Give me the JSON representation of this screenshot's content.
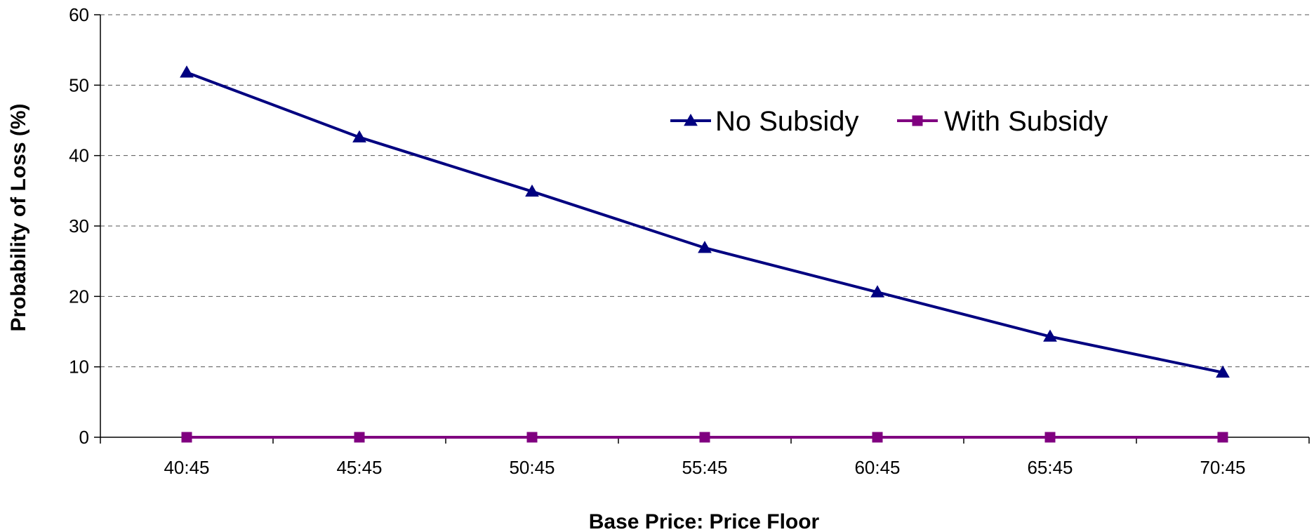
{
  "chart_data": {
    "type": "line",
    "title": "",
    "xlabel": "Base Price: Price Floor",
    "ylabel": "Probability of Loss (%)",
    "categories": [
      "40:45",
      "45:45",
      "50:45",
      "55:45",
      "60:45",
      "65:45",
      "70:45"
    ],
    "ylim": [
      0,
      60
    ],
    "yticks": [
      0,
      10,
      20,
      30,
      40,
      50,
      60
    ],
    "grid": true,
    "legend_position": "top-right",
    "series": [
      {
        "name": "No Subsidy",
        "values": [
          51.8,
          42.6,
          34.9,
          26.9,
          20.6,
          14.3,
          9.2
        ],
        "color": "#000080",
        "marker": "triangle"
      },
      {
        "name": "With Subsidy",
        "values": [
          0,
          0,
          0,
          0,
          0,
          0,
          0
        ],
        "color": "#800080",
        "marker": "square"
      }
    ]
  }
}
